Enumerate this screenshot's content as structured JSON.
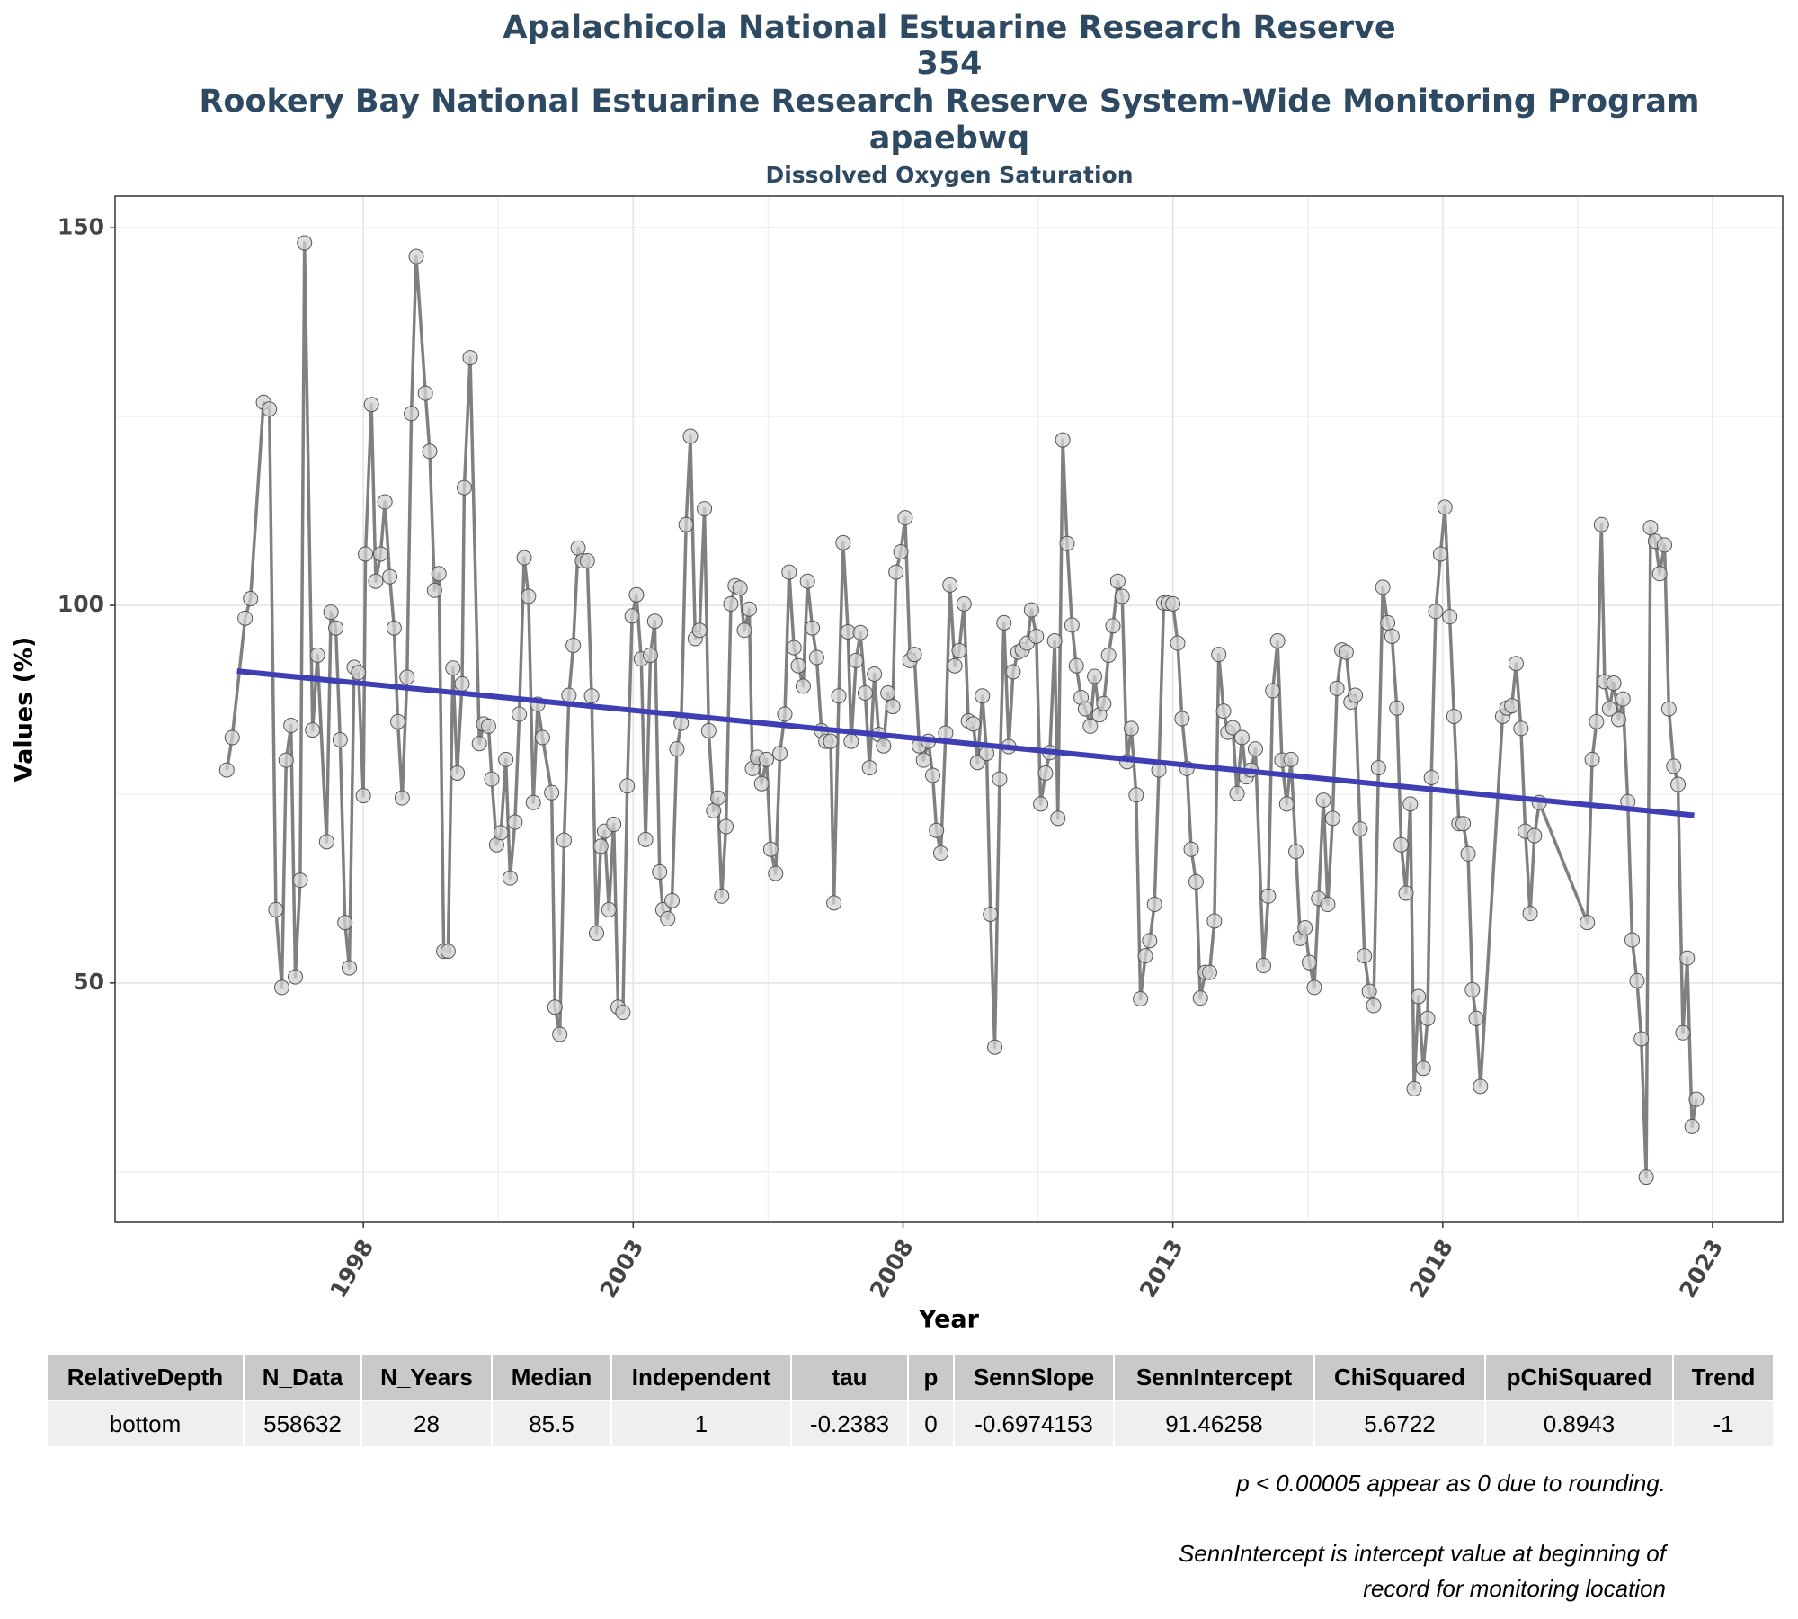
{
  "chart_data": {
    "type": "line",
    "title": [
      "Apalachicola National Estuarine Research Reserve",
      "354",
      "Rookery Bay National Estuarine Research Reserve System-Wide Monitoring Program",
      "apaebwq"
    ],
    "subtitle": "Dissolved Oxygen Saturation",
    "xlabel": "Year",
    "ylabel": "Values (%)",
    "xlim": [
      1993.4,
      2024.3
    ],
    "xticks": [
      1998,
      2003,
      2008,
      2013,
      2018,
      2023
    ],
    "xminorticks": [
      2000.5,
      2005.5,
      2010.5,
      2015.5,
      2020.5
    ],
    "ylim": [
      18.3,
      154.2
    ],
    "yticks": [
      50,
      100,
      150
    ],
    "yminorticks": [
      25,
      75,
      125
    ],
    "grid": true,
    "series": [
      {
        "color": "#808080",
        "markers": true,
        "x": [
          1995.47,
          1995.57,
          1995.81,
          1995.91,
          1996.15,
          1996.26,
          1996.38,
          1996.49,
          1996.57,
          1996.66,
          1996.74,
          1996.83,
          1996.91,
          1997.06,
          1997.15,
          1997.32,
          1997.4,
          1997.49,
          1997.57,
          1997.66,
          1997.74,
          1997.83,
          1997.91,
          1998.0,
          1998.04,
          1998.15,
          1998.23,
          1998.32,
          1998.4,
          1998.49,
          1998.57,
          1998.64,
          1998.72,
          1998.81,
          1998.89,
          1998.98,
          1999.15,
          1999.23,
          1999.32,
          1999.4,
          1999.49,
          1999.57,
          1999.66,
          1999.74,
          1999.83,
          1999.87,
          1999.98,
          2000.15,
          2000.23,
          2000.32,
          2000.38,
          2000.47,
          2000.55,
          2000.64,
          2000.72,
          2000.81,
          2000.89,
          2000.98,
          2001.06,
          2001.15,
          2001.23,
          2001.32,
          2001.49,
          2001.55,
          2001.64,
          2001.72,
          2001.81,
          2001.89,
          2001.98,
          2002.06,
          2002.15,
          2002.23,
          2002.32,
          2002.4,
          2002.47,
          2002.55,
          2002.64,
          2002.72,
          2002.81,
          2002.89,
          2002.98,
          2003.06,
          2003.15,
          2003.23,
          2003.32,
          2003.4,
          2003.49,
          2003.55,
          2003.64,
          2003.72,
          2003.81,
          2003.89,
          2003.98,
          2004.06,
          2004.15,
          2004.23,
          2004.32,
          2004.4,
          2004.49,
          2004.57,
          2004.64,
          2004.72,
          2004.81,
          2004.89,
          2004.98,
          2005.06,
          2005.15,
          2005.21,
          2005.3,
          2005.38,
          2005.47,
          2005.55,
          2005.64,
          2005.72,
          2005.81,
          2005.89,
          2005.98,
          2006.06,
          2006.15,
          2006.23,
          2006.32,
          2006.4,
          2006.49,
          2006.57,
          2006.66,
          2006.72,
          2006.81,
          2006.89,
          2006.98,
          2007.04,
          2007.13,
          2007.21,
          2007.3,
          2007.38,
          2007.47,
          2007.55,
          2007.64,
          2007.72,
          2007.81,
          2007.87,
          2007.96,
          2008.04,
          2008.13,
          2008.21,
          2008.3,
          2008.38,
          2008.47,
          2008.55,
          2008.62,
          2008.7,
          2008.79,
          2008.87,
          2008.96,
          2009.04,
          2009.13,
          2009.21,
          2009.3,
          2009.38,
          2009.47,
          2009.55,
          2009.62,
          2009.7,
          2009.79,
          2009.87,
          2009.96,
          2010.04,
          2010.13,
          2010.21,
          2010.3,
          2010.38,
          2010.47,
          2010.55,
          2010.64,
          2010.72,
          2010.81,
          2010.87,
          2010.96,
          2011.04,
          2011.13,
          2011.21,
          2011.3,
          2011.38,
          2011.47,
          2011.55,
          2011.64,
          2011.72,
          2011.81,
          2011.89,
          2011.98,
          2012.06,
          2012.15,
          2012.23,
          2012.32,
          2012.4,
          2012.49,
          2012.57,
          2012.66,
          2012.74,
          2012.83,
          2012.91,
          2013.0,
          2013.09,
          2013.17,
          2013.26,
          2013.34,
          2013.43,
          2013.51,
          2013.6,
          2013.68,
          2013.77,
          2013.85,
          2013.94,
          2014.02,
          2014.11,
          2014.19,
          2014.28,
          2014.36,
          2014.45,
          2014.53,
          2014.68,
          2014.77,
          2014.85,
          2014.94,
          2015.02,
          2015.11,
          2015.19,
          2015.28,
          2015.36,
          2015.45,
          2015.53,
          2015.62,
          2015.7,
          2015.79,
          2015.87,
          2015.96,
          2016.04,
          2016.13,
          2016.21,
          2016.3,
          2016.38,
          2016.47,
          2016.55,
          2016.64,
          2016.72,
          2016.81,
          2016.89,
          2016.98,
          2017.06,
          2017.15,
          2017.23,
          2017.32,
          2017.4,
          2017.47,
          2017.55,
          2017.64,
          2017.72,
          2017.79,
          2017.87,
          2017.96,
          2018.04,
          2018.13,
          2018.21,
          2018.3,
          2018.38,
          2018.47,
          2018.55,
          2018.62,
          2018.7,
          2019.11,
          2019.19,
          2019.28,
          2019.36,
          2019.45,
          2019.53,
          2019.62,
          2019.7,
          2019.79,
          2020.68,
          2020.77,
          2020.85,
          2020.94,
          2021.0,
          2021.09,
          2021.17,
          2021.26,
          2021.34,
          2021.43,
          2021.51,
          2021.6,
          2021.68,
          2021.77,
          2021.85,
          2021.94,
          2022.02,
          2022.11,
          2022.19,
          2022.28,
          2022.36,
          2022.45,
          2022.53,
          2022.62,
          2022.7
        ],
        "values": [
          78.2,
          82.5,
          98.3,
          100.9,
          126.9,
          126.0,
          59.7,
          49.4,
          79.5,
          84.1,
          50.8,
          63.6,
          148.0,
          83.5,
          93.4,
          68.7,
          99.1,
          97.0,
          82.2,
          58.0,
          52.0,
          91.8,
          91.1,
          74.8,
          106.8,
          126.6,
          103.2,
          106.8,
          113.7,
          103.8,
          97.0,
          84.6,
          74.5,
          90.5,
          125.4,
          146.2,
          128.1,
          120.4,
          102.0,
          104.2,
          54.2,
          54.2,
          91.7,
          77.8,
          89.6,
          115.6,
          132.8,
          81.7,
          84.3,
          84.0,
          77.0,
          68.3,
          69.9,
          79.6,
          63.9,
          71.3,
          85.6,
          106.3,
          101.2,
          73.9,
          86.9,
          82.5,
          75.2,
          46.8,
          43.2,
          68.9,
          88.1,
          94.7,
          107.6,
          105.9,
          105.9,
          88.0,
          56.6,
          68.1,
          70.1,
          59.7,
          71.0,
          46.8,
          46.1,
          76.1,
          98.6,
          101.4,
          92.9,
          69.0,
          93.4,
          97.9,
          64.7,
          59.7,
          58.5,
          60.9,
          81.0,
          84.4,
          110.7,
          122.4,
          95.6,
          96.7,
          112.8,
          83.4,
          72.8,
          74.5,
          61.5,
          70.7,
          100.2,
          102.6,
          102.3,
          96.7,
          99.5,
          78.4,
          79.9,
          76.4,
          79.6,
          67.7,
          64.5,
          80.4,
          85.6,
          104.4,
          94.4,
          92.0,
          89.3,
          103.2,
          97.0,
          93.1,
          83.4,
          82.0,
          82.0,
          60.6,
          88.0,
          108.3,
          96.5,
          82.0,
          92.7,
          96.4,
          88.4,
          78.5,
          90.9,
          82.9,
          81.4,
          88.4,
          86.6,
          104.4,
          107.1,
          111.6,
          92.7,
          93.5,
          81.4,
          79.5,
          82.0,
          77.5,
          70.2,
          67.2,
          83.1,
          102.7,
          92.0,
          94.0,
          100.2,
          84.7,
          84.3,
          79.2,
          88.0,
          80.4,
          59.1,
          41.5,
          77.0,
          97.7,
          81.3,
          91.2,
          93.8,
          94.1,
          95.0,
          99.4,
          95.9,
          73.7,
          77.8,
          80.5,
          95.3,
          71.8,
          121.9,
          108.2,
          97.4,
          92.0,
          87.8,
          86.3,
          84.0,
          90.6,
          85.5,
          87.0,
          93.4,
          97.3,
          103.2,
          101.2,
          79.3,
          83.7,
          74.9,
          47.9,
          53.6,
          55.6,
          60.4,
          78.2,
          100.3,
          100.3,
          100.2,
          95.0,
          85.0,
          78.4,
          67.7,
          63.4,
          48.0,
          51.4,
          51.4,
          58.2,
          93.5,
          86.0,
          83.2,
          83.8,
          75.1,
          82.5,
          77.3,
          78.2,
          81.0,
          52.3,
          61.5,
          88.7,
          95.3,
          79.5,
          73.7,
          79.6,
          67.4,
          55.9,
          57.3,
          52.7,
          49.4,
          61.2,
          74.2,
          60.4,
          71.8,
          89.0,
          94.1,
          93.8,
          87.2,
          88.1,
          70.4,
          53.6,
          48.9,
          47.0,
          78.5,
          102.4,
          97.7,
          95.9,
          86.4,
          68.3,
          61.9,
          73.7,
          36.0,
          48.2,
          38.7,
          45.3,
          77.2,
          99.2,
          106.8,
          113.0,
          98.5,
          85.3,
          71.1,
          71.1,
          67.1,
          49.1,
          45.3,
          36.3,
          85.3,
          86.4,
          86.7,
          92.3,
          83.7,
          70.1,
          59.2,
          69.5,
          73.9,
          58.0,
          79.6,
          84.6,
          110.7,
          89.9,
          86.3,
          89.7,
          84.9,
          87.6,
          74.0,
          55.7,
          50.3,
          42.6,
          24.3,
          110.3,
          108.5,
          104.2,
          108.0,
          86.3,
          78.7,
          76.3,
          43.4,
          53.3,
          31.0,
          34.6
        ]
      },
      {
        "color": "#3f3fb5",
        "markers": false,
        "x": [
          1995.66,
          2022.66
        ],
        "values": [
          91.3,
          72.2
        ]
      }
    ]
  },
  "table": {
    "columns": [
      "RelativeDepth",
      "N_Data",
      "N_Years",
      "Median",
      "Independent",
      "tau",
      "p",
      "SennSlope",
      "SennIntercept",
      "ChiSquared",
      "pChiSquared",
      "Trend"
    ],
    "rows": [
      [
        "bottom",
        558632,
        28,
        85.5,
        1,
        -0.2383,
        0,
        -0.6974153,
        91.46258,
        5.6722,
        0.8943,
        -1
      ]
    ]
  },
  "notes": [
    "p < 0.00005 appear as 0 due to rounding.",
    "SennIntercept is intercept value at beginning of record for monitoring location"
  ]
}
